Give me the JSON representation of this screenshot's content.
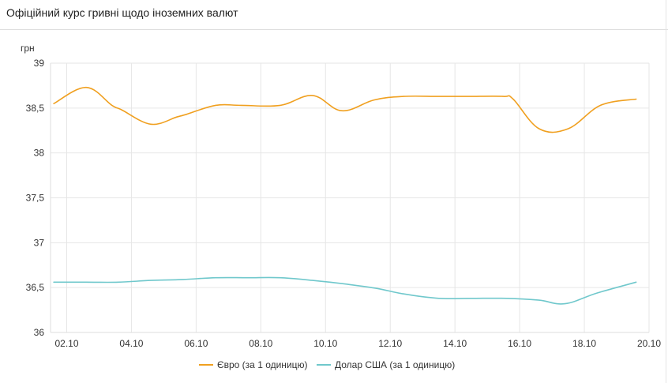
{
  "title": "Офіційний курс гривні щодо іноземних валют",
  "chart_data": {
    "type": "line",
    "ylabel": "грн",
    "ylim": [
      36,
      39
    ],
    "yticks": [
      "39",
      "38,5",
      "38",
      "37,5",
      "37",
      "36,5",
      "36"
    ],
    "yvalues": [
      39,
      38.5,
      38,
      37.5,
      37,
      36.5,
      36
    ],
    "xlim": [
      1.5,
      20
    ],
    "xticks": [
      "02.10",
      "04.10",
      "06.10",
      "08.10",
      "10.10",
      "12.10",
      "14.10",
      "16.10",
      "18.10",
      "20.10"
    ],
    "xtick_values": [
      2,
      4,
      6,
      8,
      10,
      12,
      14,
      16,
      18,
      20
    ],
    "grid": true,
    "legend_position": "bottom",
    "series": [
      {
        "name": "Євро (за 1 одиницю)",
        "color": "#f0a020",
        "x": [
          1.6,
          2.6,
          3.4,
          3.7,
          4.6,
          5.4,
          5.7,
          6.6,
          7.4,
          8.6,
          9.6,
          10.5,
          11.5,
          12.4,
          13.5,
          14.4,
          15.5,
          15.8,
          16.6,
          17.5,
          18.5,
          19.6
        ],
        "values": [
          38.55,
          38.73,
          38.53,
          38.48,
          38.32,
          38.4,
          38.43,
          38.53,
          38.53,
          38.53,
          38.64,
          38.47,
          38.59,
          38.63,
          38.63,
          38.63,
          38.63,
          38.6,
          38.27,
          38.27,
          38.53,
          38.6
        ]
      },
      {
        "name": "Долар США (за 1 одиницю)",
        "color": "#70c8cc",
        "x": [
          1.6,
          2.6,
          3.6,
          4.6,
          5.6,
          6.6,
          7.6,
          8.6,
          9.6,
          10.6,
          11.6,
          12.4,
          13.5,
          14.5,
          15.6,
          16.6,
          17.4,
          18.4,
          19.6
        ],
        "values": [
          36.56,
          36.56,
          36.56,
          36.58,
          36.59,
          36.61,
          36.61,
          36.61,
          36.58,
          36.54,
          36.49,
          36.43,
          36.38,
          36.38,
          36.38,
          36.36,
          36.32,
          36.44,
          36.56
        ]
      }
    ]
  }
}
